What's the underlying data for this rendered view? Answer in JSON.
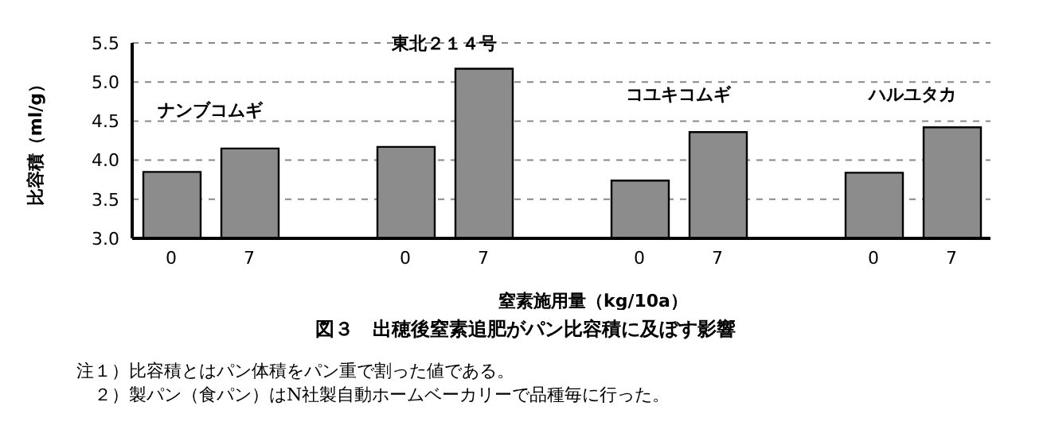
{
  "chart_data": {
    "type": "bar",
    "title": "図３　出穂後窒素追肥がパン比容積に及ぼす影響",
    "xlabel": "窒素施用量（kg/10a）",
    "ylabel": "比容積（ml/g）",
    "categories": [
      "0",
      "7",
      null,
      "0",
      "7",
      null,
      "0",
      "7",
      null,
      "0",
      "7"
    ],
    "values": [
      3.85,
      4.15,
      null,
      4.17,
      5.17,
      null,
      3.74,
      4.36,
      null,
      3.84,
      4.42
    ],
    "color": "#8c8c8c",
    "ylim": [
      3.0,
      5.5
    ],
    "yticks": [
      {
        "value": 3,
        "label": "3.0"
      },
      {
        "value": 3.5,
        "label": "3.5"
      },
      {
        "value": 4,
        "label": "4.0"
      },
      {
        "value": 4.5,
        "label": "4.5"
      },
      {
        "value": 5,
        "label": "5.0"
      },
      {
        "value": 5.5,
        "label": "5.5"
      }
    ],
    "grid": "y",
    "annotations": [
      "ナンブコムギ",
      "東北２１４号",
      "コユキコムギ",
      "ハルユタカ",
      "注１）比容積とはパン体積をパン重で割った値である。",
      "　２）製パン（食パン）はN社製自動ホームベーカリーで品種毎に行った。"
    ]
  }
}
